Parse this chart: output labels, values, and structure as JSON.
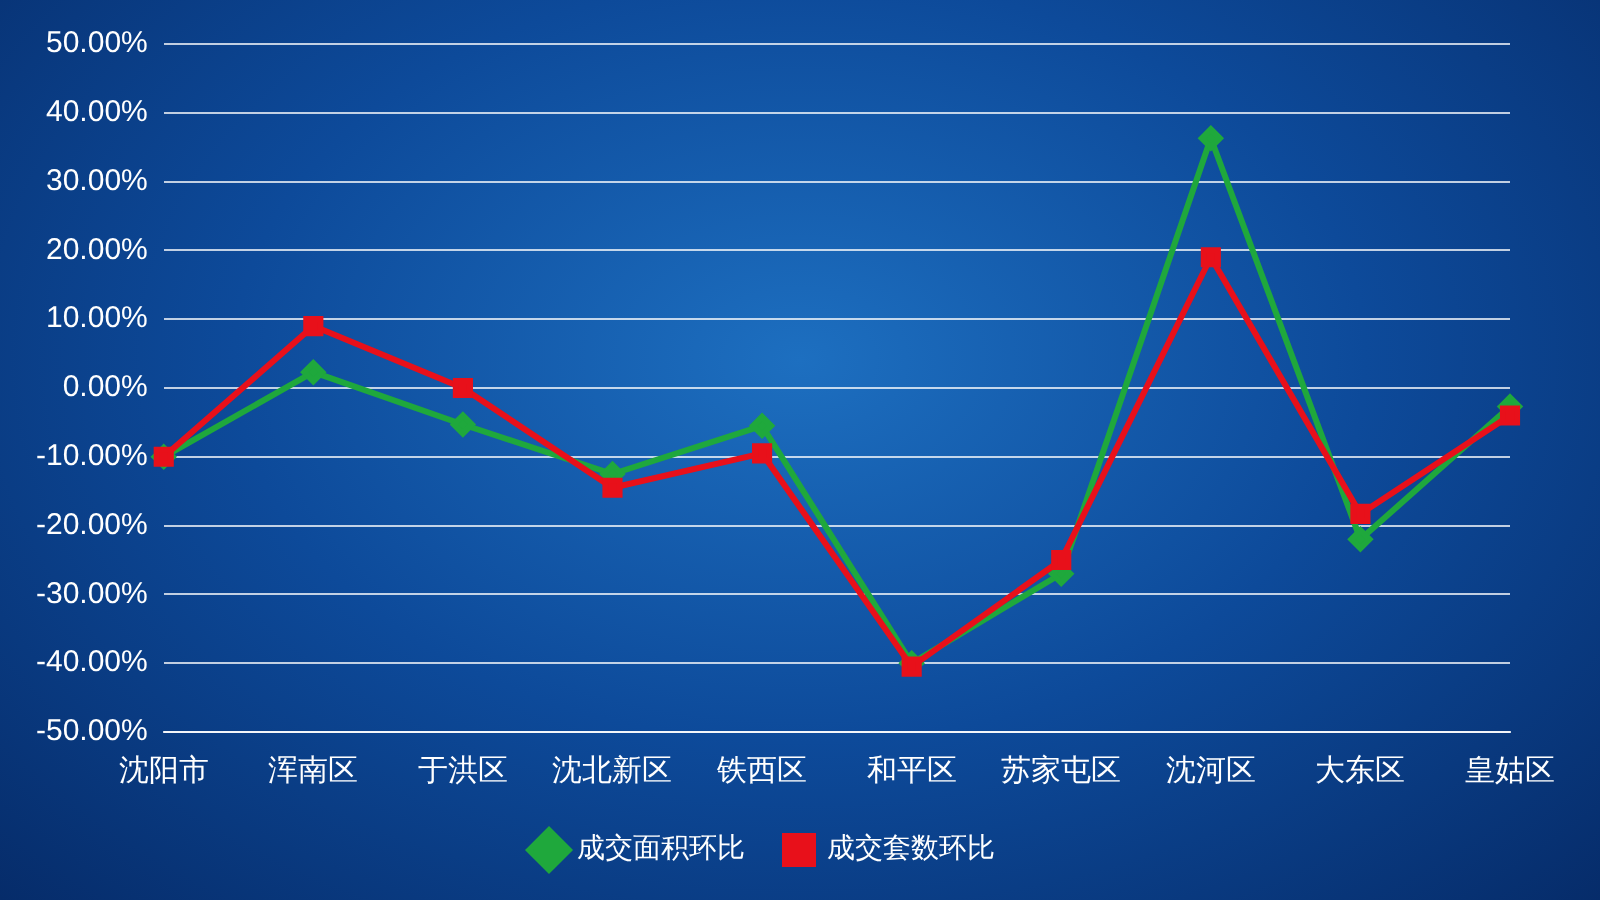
{
  "chart_data": {
    "type": "line",
    "categories": [
      "沈阳市",
      "浑南区",
      "于洪区",
      "沈北新区",
      "铁西区",
      "和平区",
      "苏家屯区",
      "沈河区",
      "大东区",
      "皇姑区"
    ],
    "series": [
      {
        "name": "成交面积环比",
        "color": "#1fa83c",
        "marker": "diamond",
        "values": [
          -10,
          2.3,
          -5.3,
          -12.5,
          -5.5,
          -40,
          -27,
          36.3,
          -22,
          -2.7
        ]
      },
      {
        "name": "成交套数环比",
        "color": "#e8101a",
        "marker": "square",
        "values": [
          -10,
          9,
          0,
          -14.5,
          -9.5,
          -40.5,
          -25,
          19,
          -18.3,
          -4
        ]
      }
    ],
    "ylim": [
      -50,
      50
    ],
    "yticks": [
      {
        "value": -50,
        "label": "-50.00%"
      },
      {
        "value": -40,
        "label": "-40.00%"
      },
      {
        "value": -30,
        "label": "-30.00%"
      },
      {
        "value": -20,
        "label": "-20.00%"
      },
      {
        "value": -10,
        "label": "-10.00%"
      },
      {
        "value": 0,
        "label": "0.00%"
      },
      {
        "value": 10,
        "label": "10.00%"
      },
      {
        "value": 20,
        "label": "20.00%"
      },
      {
        "value": 30,
        "label": "30.00%"
      },
      {
        "value": 40,
        "label": "40.00%"
      },
      {
        "value": 50,
        "label": "50.00%"
      }
    ],
    "grid": "y",
    "legend": "bottom",
    "line_style": "solid"
  }
}
